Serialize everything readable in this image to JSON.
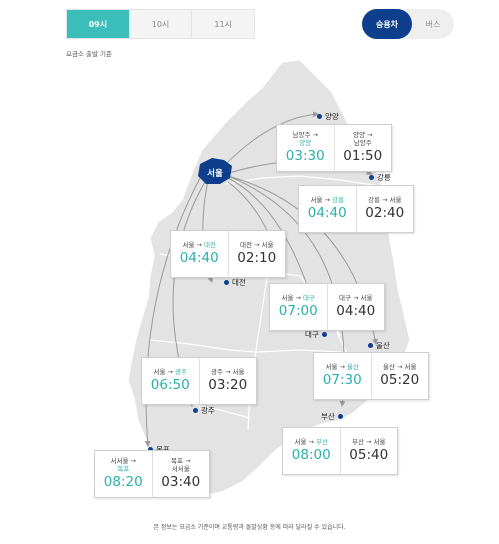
{
  "time_tabs": [
    {
      "label": "09시",
      "active": true
    },
    {
      "label": "10시",
      "active": false
    },
    {
      "label": "11시",
      "active": false
    }
  ],
  "vehicle_toggle": {
    "car": "승용차",
    "bus": "버스",
    "selected": "승용차"
  },
  "caption": "요금소 출발 기준",
  "cities": {
    "yangyang": "양양",
    "gangneung": "강릉",
    "daejeon": "대전",
    "daegu": "대구",
    "ulsan": "울산",
    "busan": "부산",
    "gwangju": "광주",
    "mokpo": "목포",
    "seoul": "서울"
  },
  "cards": {
    "yangyang": {
      "out_line1": "남양주 →",
      "out_line2": "양양",
      "out_time": "03:30",
      "in_line1": "양양 →",
      "in_line2": "남양주",
      "in_time": "01:50"
    },
    "gangneung": {
      "out_from": "서울 → ",
      "out_to": "강릉",
      "out_time": "04:40",
      "in_route": "강릉 → 서울",
      "in_time": "02:40"
    },
    "daejeon": {
      "out_from": "서울 → ",
      "out_to": "대전",
      "out_time": "04:40",
      "in_route": "대전 → 서울",
      "in_time": "02:10"
    },
    "daegu": {
      "out_from": "서울 → ",
      "out_to": "대구",
      "out_time": "07:00",
      "in_route": "대구 → 서울",
      "in_time": "04:40"
    },
    "ulsan": {
      "out_from": "서울 → ",
      "out_to": "울산",
      "out_time": "07:30",
      "in_route": "울산 → 서울",
      "in_time": "05:20"
    },
    "gwangju": {
      "out_from": "서울 → ",
      "out_to": "광주",
      "out_time": "06:50",
      "in_route": "광주 → 서울",
      "in_time": "03:20"
    },
    "busan": {
      "out_from": "서울 → ",
      "out_to": "부산",
      "out_time": "08:00",
      "in_route": "부산 → 서울",
      "in_time": "05:40"
    },
    "mokpo": {
      "out_line1": "서서울 →",
      "out_line2": "목포",
      "out_time": "08:20",
      "in_line1": "목포 →",
      "in_line2": "서서울",
      "in_time": "03:40"
    }
  },
  "footnote": "본 정보는 요금소 기준이며 교통량과 돌발상황 등에 따라 달라질 수 있습니다.",
  "colors": {
    "teal": "#3bbdb9",
    "navy": "#0d3f8c",
    "land": "#e3e3e3",
    "route_line": "#9a9a9a"
  }
}
